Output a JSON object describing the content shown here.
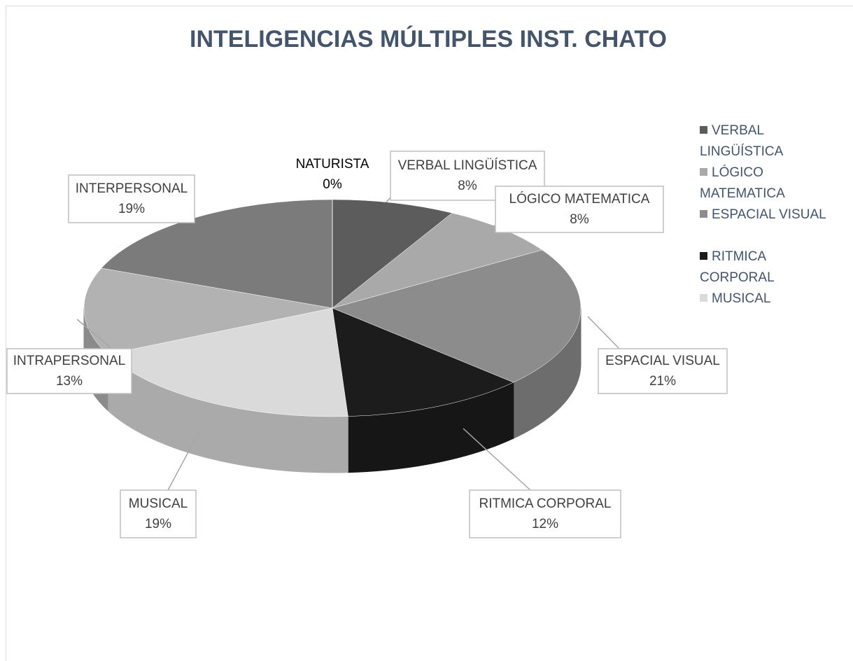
{
  "chart_data": {
    "type": "pie3d",
    "title": "INTELIGENCIAS MÚLTIPLES INST. CHATO",
    "categories": [
      "VERBAL LINGÜÍSTICA",
      "LÓGICO MATEMATICA",
      "ESPACIAL VISUAL",
      "RITMICA CORPORAL",
      "MUSICAL",
      "INTRAPERSONAL",
      "INTERPERSONAL",
      "NATURISTA"
    ],
    "values": [
      8,
      8,
      21,
      12,
      19,
      13,
      19,
      0
    ],
    "value_labels": [
      "8%",
      "8%",
      "21%",
      "12%",
      "19%",
      "13%",
      "19%",
      "0%"
    ],
    "colors": [
      "#5c5c5c",
      "#a9a9a9",
      "#8c8c8c",
      "#1c1c1c",
      "#dadada",
      "#b2b2b2",
      "#7b7b7b",
      "#444444"
    ],
    "legend": [
      "VERBAL LINGÜÍSTICA",
      "LÓGICO MATEMATICA",
      "ESPACIAL VISUAL",
      "RITMICA CORPORAL",
      "MUSICAL"
    ]
  }
}
